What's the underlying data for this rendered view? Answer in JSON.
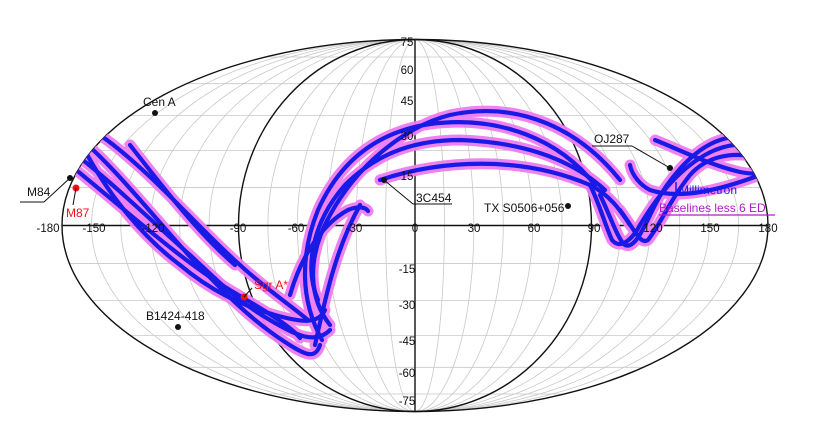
{
  "colors": {
    "track": "#1a1ae6",
    "halo": "#ee7df0",
    "red_source": "#ee1111",
    "black_source": "#111111",
    "grid": "#c8c8c8",
    "outline": "#111111",
    "legend_baselines": "#b01cc8"
  },
  "axes": {
    "longitude_ticks": [
      "-180",
      "-150",
      "-120",
      "-90",
      "-60",
      "-30",
      "0",
      "30",
      "60",
      "90",
      "120",
      "150",
      "180"
    ],
    "latitude_ticks": [
      "75",
      "60",
      "45",
      "30",
      "15",
      "-15",
      "-30",
      "-45",
      "-60",
      "-75"
    ]
  },
  "sources": [
    {
      "label": "Cen A",
      "color": "black"
    },
    {
      "label": "M84",
      "color": "black"
    },
    {
      "label": "M87",
      "color": "red"
    },
    {
      "label": "Sgr A*",
      "color": "red"
    },
    {
      "label": "B1424-418",
      "color": "black"
    },
    {
      "label": "3C454",
      "color": "black"
    },
    {
      "label": "TX S0506+056",
      "color": "black"
    },
    {
      "label": "OJ287",
      "color": "black"
    }
  ],
  "legend": {
    "track_label": "Millimetron",
    "baselines_label": "Baselines less 6 ED"
  }
}
